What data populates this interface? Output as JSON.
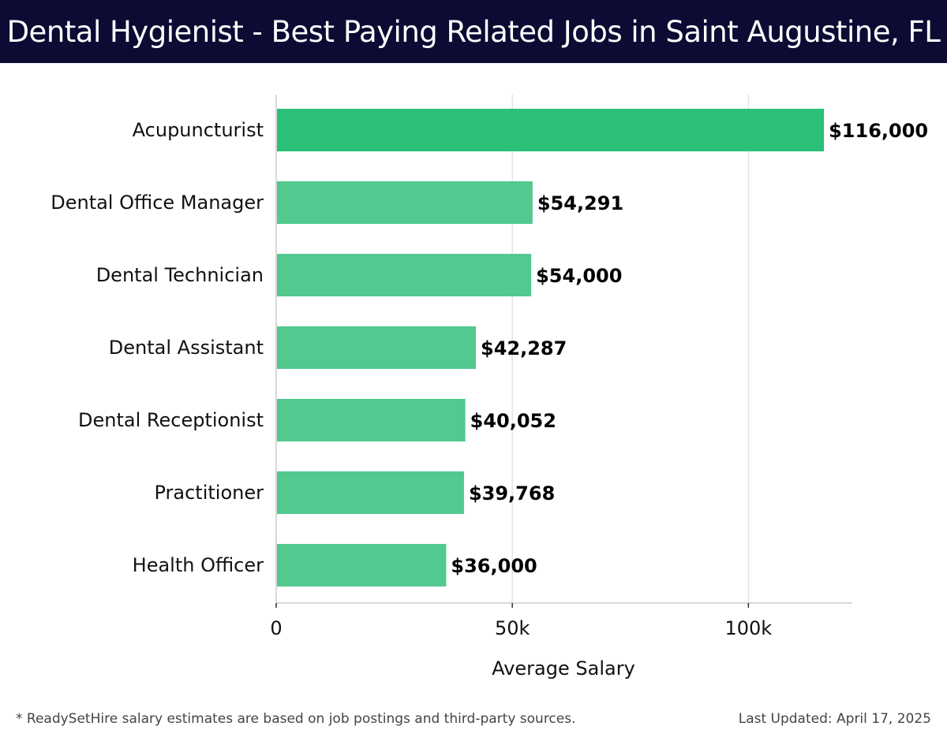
{
  "header": {
    "title": "Dental Hygienist - Best Paying Related Jobs in Saint Augustine, FL"
  },
  "chart_data": {
    "type": "bar",
    "orientation": "horizontal",
    "categories": [
      "Acupuncturist",
      "Dental Office Manager",
      "Dental Technician",
      "Dental Assistant",
      "Dental Receptionist",
      "Practitioner",
      "Health Officer"
    ],
    "values": [
      116000,
      54291,
      54000,
      42287,
      40052,
      39768,
      36000
    ],
    "value_labels": [
      "$116,000",
      "$54,291",
      "$54,000",
      "$42,287",
      "$40,052",
      "$39,768",
      "$36,000"
    ],
    "xlabel": "Average Salary",
    "ylabel": "",
    "xlim": [
      0,
      122000
    ],
    "x_ticks": [
      0,
      50000,
      100000
    ],
    "x_tick_labels": [
      "0",
      "50k",
      "100k"
    ],
    "grid": "vertical",
    "colors": {
      "top_bar": "#2bbf78",
      "bars": "#52c98f",
      "grid": "#e3e3e3",
      "axis": "#cccccc"
    }
  },
  "footer": {
    "note": "* ReadySetHire salary estimates are based on job postings and third-party sources.",
    "updated": "Last Updated: April 17, 2025"
  }
}
